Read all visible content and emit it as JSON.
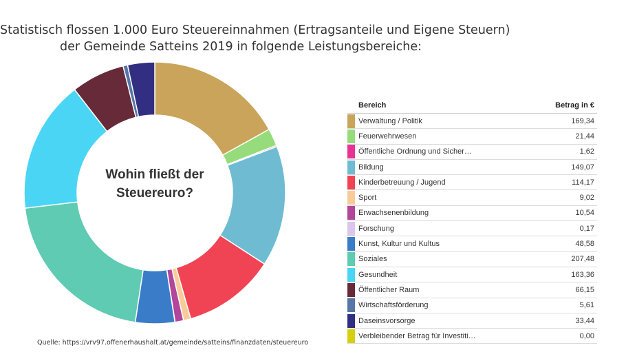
{
  "title": {
    "line1": "Statistisch flossen 1.000 Euro Steuereinnahmen (Ertragsanteile und Eigene Steuern)",
    "line2": "der Gemeinde Satteins 2019 in folgende Leistungsbereiche:"
  },
  "center": {
    "line1": "Wohin fließt der",
    "line2": "Steuereuro?"
  },
  "source": "Quelle: https://vrv97.offenerhaushalt.at/gemeinde/satteins/finanzdaten/steuereuro",
  "table": {
    "col_label": "Bereich",
    "col_amount": "Betrag in €"
  },
  "chart_data": {
    "type": "pie",
    "variant": "donut",
    "start": "top",
    "direction": "clockwise",
    "title": "Wohin fließt der Steuereuro?",
    "unit": "€",
    "slices": [
      {
        "label": "Verwaltung / Politik",
        "value": 169.34,
        "display": "169,34",
        "color": "#c9a45a"
      },
      {
        "label": "Feuerwehrwesen",
        "value": 21.44,
        "display": "21,44",
        "color": "#96dc7c"
      },
      {
        "label": "Öffentliche Ordnung und Sicher…",
        "value": 1.62,
        "display": "1,62",
        "color": "#e83296"
      },
      {
        "label": "Bildung",
        "value": 149.07,
        "display": "149,07",
        "color": "#6fbcd2"
      },
      {
        "label": "Kinderbetreuung / Jugend",
        "value": 114.17,
        "display": "114,17",
        "color": "#f04455"
      },
      {
        "label": "Sport",
        "value": 9.02,
        "display": "9,02",
        "color": "#f8cc98"
      },
      {
        "label": "Erwachsenenbildung",
        "value": 10.54,
        "display": "10,54",
        "color": "#b2459c"
      },
      {
        "label": "Forschung",
        "value": 0.17,
        "display": "0,17",
        "color": "#dcc6ea"
      },
      {
        "label": "Kunst, Kultur und Kultus",
        "value": 48.58,
        "display": "48,58",
        "color": "#3a7cc8"
      },
      {
        "label": "Soziales",
        "value": 207.48,
        "display": "207,48",
        "color": "#5ecbb2"
      },
      {
        "label": "Gesundheit",
        "value": 163.36,
        "display": "163,36",
        "color": "#4ad5f5"
      },
      {
        "label": "Öffentlicher Raum",
        "value": 66.15,
        "display": "66,15",
        "color": "#672a38"
      },
      {
        "label": "Wirtschaftsförderung",
        "value": 5.61,
        "display": "5,61",
        "color": "#5576a6"
      },
      {
        "label": "Daseinsvorsorge",
        "value": 33.44,
        "display": "33,44",
        "color": "#322f82"
      },
      {
        "label": "Verbleibender Betrag für Investiti…",
        "value": 0.0,
        "display": "0,00",
        "color": "#d6cf10"
      }
    ]
  }
}
